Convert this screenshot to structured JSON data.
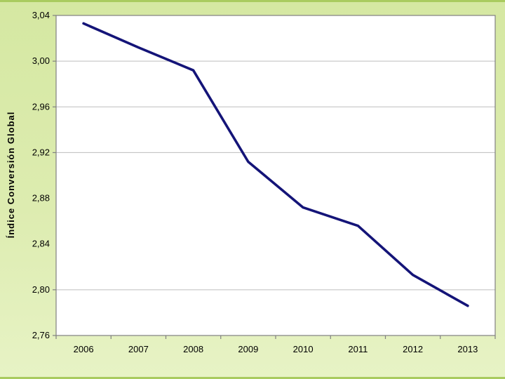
{
  "slide": {
    "bg_top": "#d5e8a2",
    "bg_bottom": "#e7f3c5",
    "frame_border_color": "#a9cb5f"
  },
  "chart_data": {
    "type": "line",
    "title": "",
    "xlabel": "",
    "ylabel": "Índice Conversión Global",
    "categories": [
      "2006",
      "2007",
      "2008",
      "2009",
      "2010",
      "2011",
      "2012",
      "2013"
    ],
    "series": [
      {
        "name": "Índice Conversión Global",
        "color": "#141478",
        "values": [
          3.033,
          3.012,
          2.992,
          2.912,
          2.872,
          2.856,
          2.813,
          2.786
        ]
      }
    ],
    "ylim": [
      2.76,
      3.04
    ],
    "yticks": [
      {
        "value": 3.04,
        "label": "3,04",
        "tick": true,
        "gridline": false
      },
      {
        "value": 3.0,
        "label": "3,00",
        "tick": true,
        "gridline": true
      },
      {
        "value": 2.96,
        "label": "2,96",
        "tick": true,
        "gridline": true
      },
      {
        "value": 2.92,
        "label": "2,92",
        "tick": true,
        "gridline": true
      },
      {
        "value": 2.88,
        "label": "2,88",
        "tick": false,
        "gridline": false
      },
      {
        "value": 2.84,
        "label": "2,84",
        "tick": false,
        "gridline": false
      },
      {
        "value": 2.8,
        "label": "2,80",
        "tick": true,
        "gridline": true
      },
      {
        "value": 2.76,
        "label": "2,76",
        "tick": true,
        "gridline": false
      }
    ],
    "grid": "horizontal-partial",
    "legend": "none",
    "plot_bg": "#ffffff",
    "axis_color": "#808080",
    "gridline_color": "#bdbdbd",
    "text_color": "#000000"
  }
}
